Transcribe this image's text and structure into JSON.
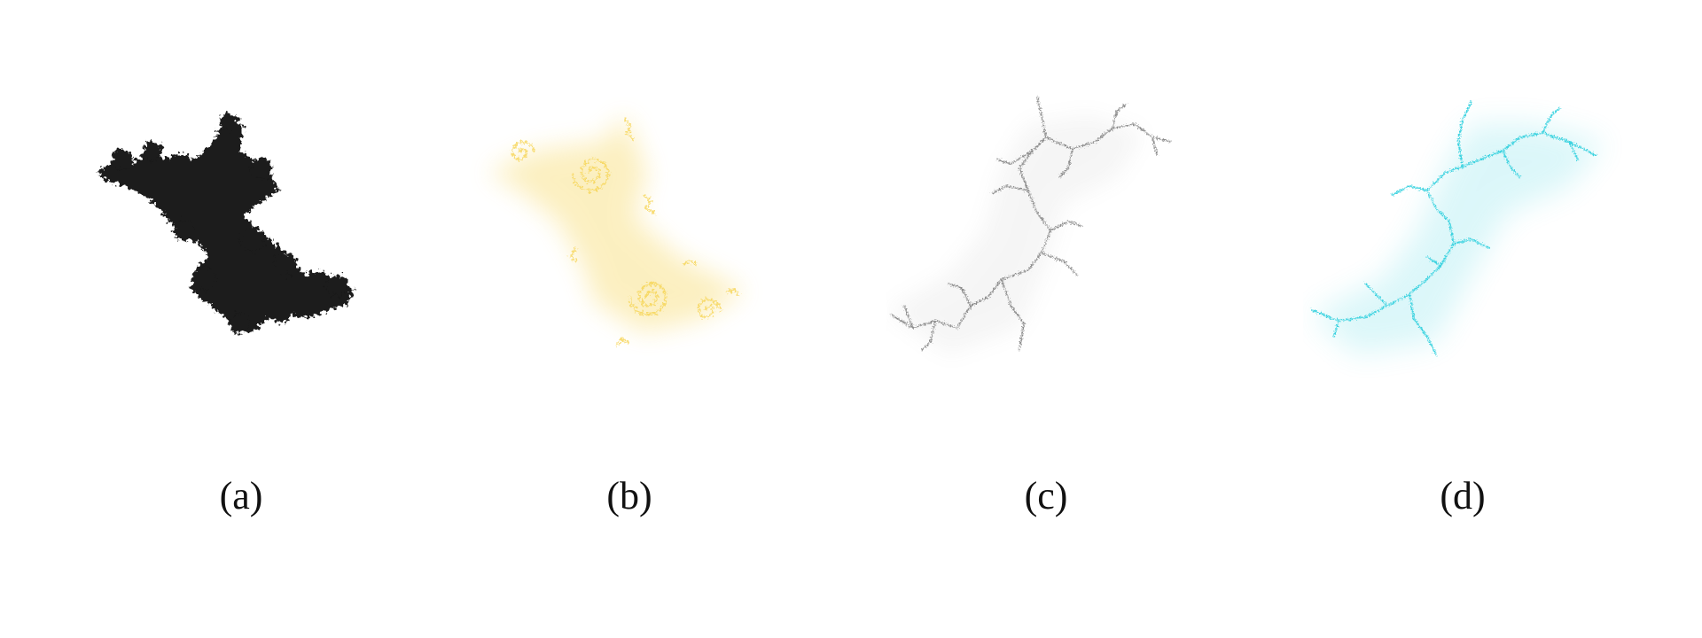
{
  "panels": [
    {
      "id": "a",
      "label": "(a)",
      "color": "#1a1a1a",
      "style": "filled"
    },
    {
      "id": "b",
      "label": "(b)",
      "color": "#f6d34d",
      "style": "glow-spirals"
    },
    {
      "id": "c",
      "label": "(c)",
      "color": "#8c8c8c",
      "style": "dendrite"
    },
    {
      "id": "d",
      "label": "(d)",
      "color": "#3ed3e0",
      "style": "dendrite-glow"
    }
  ]
}
